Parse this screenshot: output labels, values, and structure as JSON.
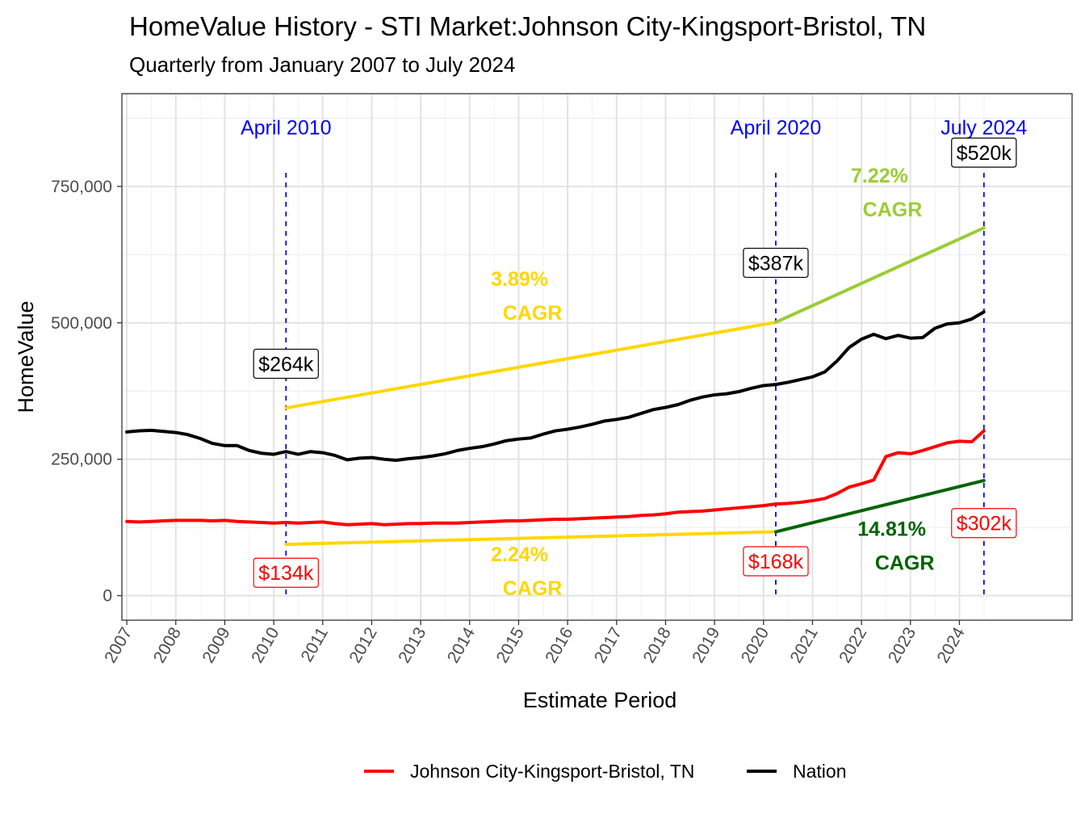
{
  "chart_data": {
    "type": "line",
    "title": "HomeValue History - STI Market:Johnson City-Kingsport-Bristol, TN",
    "subtitle": "Quarterly from January 2007 to July 2024",
    "xlabel": "Estimate Period",
    "ylabel": "HomeValue",
    "xlim": [
      2006.9,
      2026.3
    ],
    "ylim": [
      -45000,
      920000
    ],
    "x_ticks": [
      2007,
      2008,
      2009,
      2010,
      2011,
      2012,
      2013,
      2014,
      2015,
      2016,
      2017,
      2018,
      2019,
      2020,
      2021,
      2022,
      2023,
      2024
    ],
    "x_tick_labels": [
      "2007",
      "2008",
      "2009",
      "2010",
      "2011",
      "2012",
      "2013",
      "2014",
      "2015",
      "2016",
      "2017",
      "2018",
      "2019",
      "2020",
      "2021",
      "2022",
      "2023",
      "2024"
    ],
    "y_ticks": [
      0,
      250000,
      500000,
      750000
    ],
    "y_tick_labels": [
      "0",
      "250,000",
      "500,000",
      "750,000"
    ],
    "legend_position": "bottom",
    "grid": true,
    "series": [
      {
        "name": "Johnson City-Kingsport-Bristol, TN",
        "color": "#ff0000",
        "points": [
          [
            2007.0,
            136000
          ],
          [
            2007.25,
            135000
          ],
          [
            2007.5,
            136000
          ],
          [
            2007.75,
            137000
          ],
          [
            2008.0,
            138000
          ],
          [
            2008.25,
            138000
          ],
          [
            2008.5,
            138000
          ],
          [
            2008.75,
            137000
          ],
          [
            2009.0,
            138000
          ],
          [
            2009.25,
            136000
          ],
          [
            2009.5,
            135000
          ],
          [
            2009.75,
            134000
          ],
          [
            2010.0,
            133000
          ],
          [
            2010.25,
            134000
          ],
          [
            2010.5,
            133000
          ],
          [
            2010.75,
            134000
          ],
          [
            2011.0,
            135000
          ],
          [
            2011.25,
            132000
          ],
          [
            2011.5,
            130000
          ],
          [
            2011.75,
            131000
          ],
          [
            2012.0,
            132000
          ],
          [
            2012.25,
            130000
          ],
          [
            2012.5,
            131000
          ],
          [
            2012.75,
            132000
          ],
          [
            2013.0,
            132000
          ],
          [
            2013.25,
            133000
          ],
          [
            2013.5,
            133000
          ],
          [
            2013.75,
            133000
          ],
          [
            2014.0,
            134000
          ],
          [
            2014.25,
            135000
          ],
          [
            2014.5,
            136000
          ],
          [
            2014.75,
            137000
          ],
          [
            2015.0,
            137000
          ],
          [
            2015.25,
            138000
          ],
          [
            2015.5,
            139000
          ],
          [
            2015.75,
            140000
          ],
          [
            2016.0,
            140000
          ],
          [
            2016.25,
            141000
          ],
          [
            2016.5,
            142000
          ],
          [
            2016.75,
            143000
          ],
          [
            2017.0,
            144000
          ],
          [
            2017.25,
            145000
          ],
          [
            2017.5,
            147000
          ],
          [
            2017.75,
            148000
          ],
          [
            2018.0,
            150000
          ],
          [
            2018.25,
            153000
          ],
          [
            2018.5,
            154000
          ],
          [
            2018.75,
            155000
          ],
          [
            2019.0,
            157000
          ],
          [
            2019.25,
            159000
          ],
          [
            2019.5,
            161000
          ],
          [
            2019.75,
            163000
          ],
          [
            2020.0,
            165000
          ],
          [
            2020.25,
            168000
          ],
          [
            2020.5,
            169000
          ],
          [
            2020.75,
            171000
          ],
          [
            2021.0,
            174000
          ],
          [
            2021.25,
            178000
          ],
          [
            2021.5,
            187000
          ],
          [
            2021.75,
            199000
          ],
          [
            2022.0,
            205000
          ],
          [
            2022.25,
            212000
          ],
          [
            2022.5,
            255000
          ],
          [
            2022.75,
            262000
          ],
          [
            2023.0,
            260000
          ],
          [
            2023.25,
            266000
          ],
          [
            2023.5,
            273000
          ],
          [
            2023.75,
            280000
          ],
          [
            2024.0,
            283000
          ],
          [
            2024.25,
            282000
          ],
          [
            2024.5,
            302000
          ]
        ]
      },
      {
        "name": "Nation",
        "color": "#000000",
        "points": [
          [
            2007.0,
            300000
          ],
          [
            2007.25,
            302000
          ],
          [
            2007.5,
            303000
          ],
          [
            2007.75,
            301000
          ],
          [
            2008.0,
            299000
          ],
          [
            2008.25,
            295000
          ],
          [
            2008.5,
            288000
          ],
          [
            2008.75,
            279000
          ],
          [
            2009.0,
            275000
          ],
          [
            2009.25,
            275000
          ],
          [
            2009.5,
            266000
          ],
          [
            2009.75,
            261000
          ],
          [
            2010.0,
            259000
          ],
          [
            2010.25,
            264000
          ],
          [
            2010.5,
            259000
          ],
          [
            2010.75,
            264000
          ],
          [
            2011.0,
            262000
          ],
          [
            2011.25,
            257000
          ],
          [
            2011.5,
            249000
          ],
          [
            2011.75,
            252000
          ],
          [
            2012.0,
            253000
          ],
          [
            2012.25,
            250000
          ],
          [
            2012.5,
            248000
          ],
          [
            2012.75,
            251000
          ],
          [
            2013.0,
            253000
          ],
          [
            2013.25,
            256000
          ],
          [
            2013.5,
            260000
          ],
          [
            2013.75,
            266000
          ],
          [
            2014.0,
            270000
          ],
          [
            2014.25,
            273000
          ],
          [
            2014.5,
            278000
          ],
          [
            2014.75,
            284000
          ],
          [
            2015.0,
            287000
          ],
          [
            2015.25,
            289000
          ],
          [
            2015.5,
            296000
          ],
          [
            2015.75,
            302000
          ],
          [
            2016.0,
            305000
          ],
          [
            2016.25,
            309000
          ],
          [
            2016.5,
            314000
          ],
          [
            2016.75,
            320000
          ],
          [
            2017.0,
            323000
          ],
          [
            2017.25,
            327000
          ],
          [
            2017.5,
            334000
          ],
          [
            2017.75,
            341000
          ],
          [
            2018.0,
            345000
          ],
          [
            2018.25,
            350000
          ],
          [
            2018.5,
            358000
          ],
          [
            2018.75,
            364000
          ],
          [
            2019.0,
            368000
          ],
          [
            2019.25,
            370000
          ],
          [
            2019.5,
            374000
          ],
          [
            2019.75,
            380000
          ],
          [
            2020.0,
            385000
          ],
          [
            2020.25,
            387000
          ],
          [
            2020.5,
            391000
          ],
          [
            2020.75,
            396000
          ],
          [
            2021.0,
            401000
          ],
          [
            2021.25,
            410000
          ],
          [
            2021.5,
            430000
          ],
          [
            2021.75,
            455000
          ],
          [
            2022.0,
            470000
          ],
          [
            2022.25,
            479000
          ],
          [
            2022.5,
            471000
          ],
          [
            2022.75,
            477000
          ],
          [
            2023.0,
            472000
          ],
          [
            2023.25,
            473000
          ],
          [
            2023.5,
            490000
          ],
          [
            2023.75,
            498000
          ],
          [
            2024.0,
            500000
          ],
          [
            2024.25,
            507000
          ],
          [
            2024.5,
            520000
          ]
        ]
      }
    ],
    "cagr_lines": [
      {
        "name": "Nation 2010-2020 CAGR",
        "color": "#ffd700",
        "points": [
          [
            2010.25,
            344000
          ],
          [
            2020.25,
            501000
          ]
        ]
      },
      {
        "name": "Nation 2020-2024 CAGR",
        "color": "#9acd32",
        "points": [
          [
            2020.25,
            501000
          ],
          [
            2024.5,
            674000
          ]
        ]
      },
      {
        "name": "Johnson City 2010-2020 CAGR",
        "color": "#ffd700",
        "points": [
          [
            2010.25,
            94000
          ],
          [
            2020.25,
            117000
          ]
        ]
      },
      {
        "name": "Johnson City 2020-2024 CAGR",
        "color": "#006400",
        "points": [
          [
            2020.25,
            117000
          ],
          [
            2024.5,
            211000
          ]
        ]
      }
    ],
    "vlines": [
      {
        "x": 2010.25,
        "label": "April 2010"
      },
      {
        "x": 2020.25,
        "label": "April 2020"
      },
      {
        "x": 2024.5,
        "label": "July 2024"
      }
    ],
    "value_labels": [
      {
        "text": "$264k",
        "x": 2010.25,
        "y": 425000,
        "color": "#000000"
      },
      {
        "text": "$387k",
        "x": 2020.25,
        "y": 610000,
        "color": "#000000"
      },
      {
        "text": "$520k",
        "x": 2024.5,
        "y": 812000,
        "color": "#000000"
      },
      {
        "text": "$134k",
        "x": 2010.25,
        "y": 42000,
        "color": "#ff0000"
      },
      {
        "text": "$168k",
        "x": 2020.25,
        "y": 63000,
        "color": "#ff0000"
      },
      {
        "text": "$302k",
        "x": 2024.5,
        "y": 133000,
        "color": "#ff0000"
      }
    ],
    "cagr_labels": [
      {
        "pct": "3.89%",
        "word": "CAGR",
        "x": 2015.15,
        "y": 568000,
        "color": "#ffd700"
      },
      {
        "pct": "7.22%",
        "word": "CAGR",
        "x": 2022.5,
        "y": 757000,
        "color": "#9acd32"
      },
      {
        "pct": "2.24%",
        "word": "CAGR",
        "x": 2015.15,
        "y": 63000,
        "color": "#ffd700"
      },
      {
        "pct": "14.81%",
        "word": "CAGR",
        "x": 2022.75,
        "y": 110000,
        "color": "#006400"
      }
    ]
  }
}
